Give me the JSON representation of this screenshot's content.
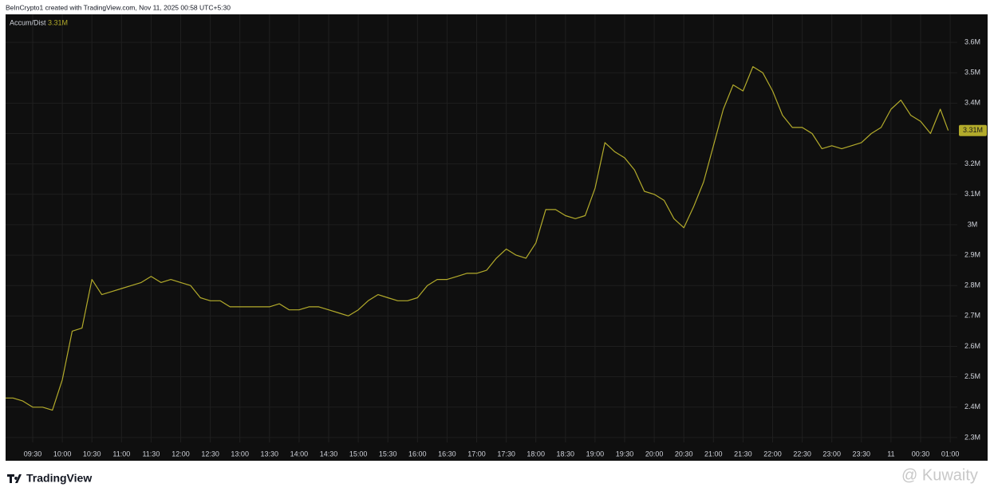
{
  "header": "BeInCrypto1 created with TradingView.com, Nov 11, 2025 00:58 UTC+5:30",
  "chart_data": {
    "type": "line",
    "x": [
      "09:00",
      "09:10",
      "09:20",
      "09:30",
      "09:40",
      "09:50",
      "10:00",
      "10:10",
      "10:20",
      "10:30",
      "10:40",
      "10:50",
      "11:00",
      "11:10",
      "11:20",
      "11:30",
      "11:40",
      "11:50",
      "12:00",
      "12:10",
      "12:20",
      "12:30",
      "12:40",
      "12:50",
      "13:00",
      "13:10",
      "13:20",
      "13:30",
      "13:40",
      "13:50",
      "14:00",
      "14:10",
      "14:20",
      "14:30",
      "14:40",
      "14:50",
      "15:00",
      "15:10",
      "15:20",
      "15:30",
      "15:40",
      "15:50",
      "16:00",
      "16:10",
      "16:20",
      "16:30",
      "16:40",
      "16:50",
      "17:00",
      "17:10",
      "17:20",
      "17:30",
      "17:40",
      "17:50",
      "18:00",
      "18:10",
      "18:20",
      "18:30",
      "18:40",
      "18:50",
      "19:00",
      "19:10",
      "19:20",
      "19:30",
      "19:40",
      "19:50",
      "20:00",
      "20:10",
      "20:20",
      "20:30",
      "20:40",
      "20:50",
      "21:00",
      "21:10",
      "21:20",
      "21:30",
      "21:40",
      "21:50",
      "22:00",
      "22:10",
      "22:20",
      "22:30",
      "22:40",
      "22:50",
      "23:00",
      "23:10",
      "23:20",
      "23:30",
      "23:40",
      "23:50",
      "00:00",
      "00:10",
      "00:20",
      "00:30",
      "00:40",
      "00:50",
      "00:58"
    ],
    "series": [
      {
        "name": "Accum/Dist",
        "color": "#b3ab2b",
        "last_label": "3.31M",
        "values": [
          2430000,
          2430000,
          2420000,
          2400000,
          2400000,
          2390000,
          2490000,
          2650000,
          2660000,
          2820000,
          2770000,
          2780000,
          2790000,
          2800000,
          2810000,
          2830000,
          2810000,
          2820000,
          2810000,
          2800000,
          2760000,
          2750000,
          2750000,
          2730000,
          2730000,
          2730000,
          2730000,
          2730000,
          2740000,
          2720000,
          2720000,
          2730000,
          2730000,
          2720000,
          2710000,
          2700000,
          2720000,
          2750000,
          2770000,
          2760000,
          2750000,
          2750000,
          2760000,
          2800000,
          2820000,
          2820000,
          2830000,
          2840000,
          2840000,
          2850000,
          2890000,
          2920000,
          2900000,
          2890000,
          2940000,
          3050000,
          3050000,
          3030000,
          3020000,
          3030000,
          3120000,
          3270000,
          3240000,
          3220000,
          3180000,
          3110000,
          3100000,
          3080000,
          3020000,
          2990000,
          3060000,
          3140000,
          3260000,
          3380000,
          3460000,
          3440000,
          3520000,
          3500000,
          3440000,
          3360000,
          3320000,
          3320000,
          3300000,
          3250000,
          3260000,
          3250000,
          3260000,
          3270000,
          3300000,
          3320000,
          3380000,
          3410000,
          3360000,
          3340000,
          3300000,
          3380000,
          3310000
        ]
      }
    ],
    "ylim": [
      2284000,
      3692000
    ],
    "yticks": [
      {
        "value": 2300000,
        "label": "2.3M"
      },
      {
        "value": 2400000,
        "label": "2.4M"
      },
      {
        "value": 2500000,
        "label": "2.5M"
      },
      {
        "value": 2600000,
        "label": "2.6M"
      },
      {
        "value": 2700000,
        "label": "2.7M"
      },
      {
        "value": 2800000,
        "label": "2.8M"
      },
      {
        "value": 2900000,
        "label": "2.9M"
      },
      {
        "value": 3000000,
        "label": "3M"
      },
      {
        "value": 3100000,
        "label": "3.1M"
      },
      {
        "value": 3200000,
        "label": "3.2M"
      },
      {
        "value": 3300000,
        "label": "3.3M"
      },
      {
        "value": 3400000,
        "label": "3.4M"
      },
      {
        "value": 3500000,
        "label": "3.5M"
      },
      {
        "value": 3600000,
        "label": "3.6M"
      }
    ],
    "xticks": [
      "09:30",
      "10:00",
      "10:30",
      "11:00",
      "11:30",
      "12:00",
      "12:30",
      "13:00",
      "13:30",
      "14:00",
      "14:30",
      "15:00",
      "15:30",
      "16:00",
      "16:30",
      "17:00",
      "17:30",
      "18:00",
      "18:30",
      "19:00",
      "19:30",
      "20:00",
      "20:30",
      "21:00",
      "21:30",
      "22:00",
      "22:30",
      "23:00",
      "23:30",
      {
        "value": "00:00",
        "label": "11"
      },
      "00:30",
      "01:00"
    ],
    "grid": true
  },
  "brand": "TradingView",
  "watermark": "@ Kuwaity"
}
